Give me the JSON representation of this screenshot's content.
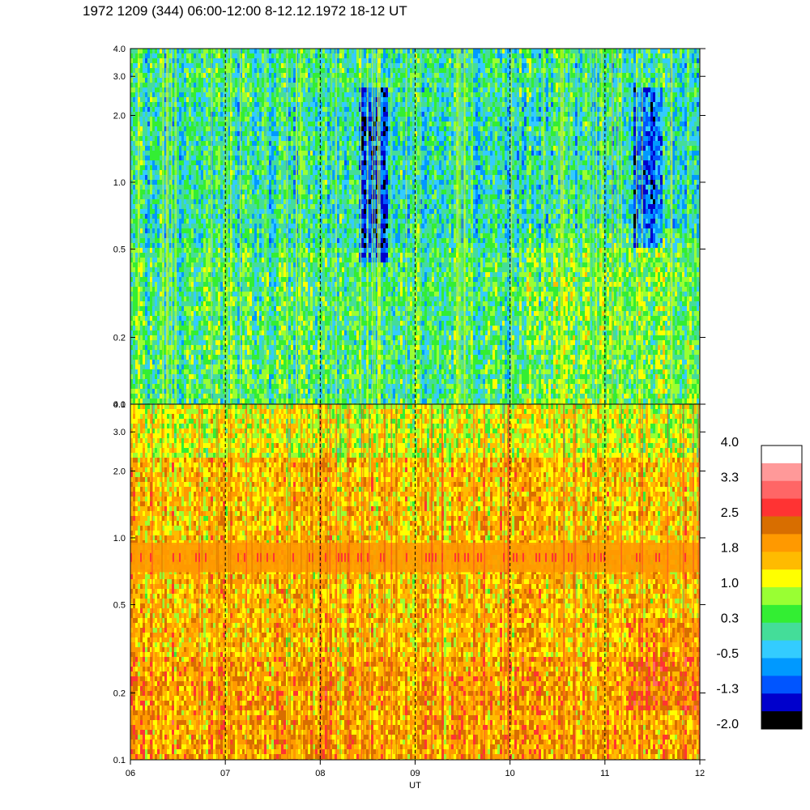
{
  "title": "1972 1209 (344) 06:00-12:00 8-12.12.1972  18-12 UT",
  "chart_data": {
    "type": "heatmap",
    "xlabel": "UT",
    "x_ticks": [
      "06",
      "07",
      "08",
      "09",
      "10",
      "11",
      "12"
    ],
    "x_range": [
      6,
      12
    ],
    "y_scale": "log",
    "y_ticks": [
      "4.0",
      "3.0",
      "2.0",
      "1.0",
      "0.5",
      "0.2",
      "0.1"
    ],
    "y_tick_values": [
      4.0,
      3.0,
      2.0,
      1.0,
      0.5,
      0.2,
      0.1
    ],
    "y_range": [
      0.1,
      4.0
    ],
    "panels": [
      {
        "name": "top",
        "dominant_level": 0.0,
        "band": null
      },
      {
        "name": "bottom",
        "dominant_level": 1.6,
        "band": {
          "from": 0.7,
          "to": 0.95,
          "level": 2.0
        }
      }
    ],
    "dashed_verticals": [
      7,
      8,
      9,
      10,
      11
    ],
    "colorbar": {
      "labels": [
        "4.0",
        "3.3",
        "2.5",
        "1.8",
        "1.0",
        "0.3",
        "-0.5",
        "-1.3",
        "-2.0"
      ],
      "colors": [
        "#ffffff",
        "#ff9999",
        "#ff6666",
        "#ff3333",
        "#d86e00",
        "#ff9900",
        "#ffbb00",
        "#ffff00",
        "#99ff33",
        "#33ee33",
        "#44dd99",
        "#33ccff",
        "#0099ff",
        "#0055ff",
        "#0000cc",
        "#000000"
      ]
    }
  }
}
